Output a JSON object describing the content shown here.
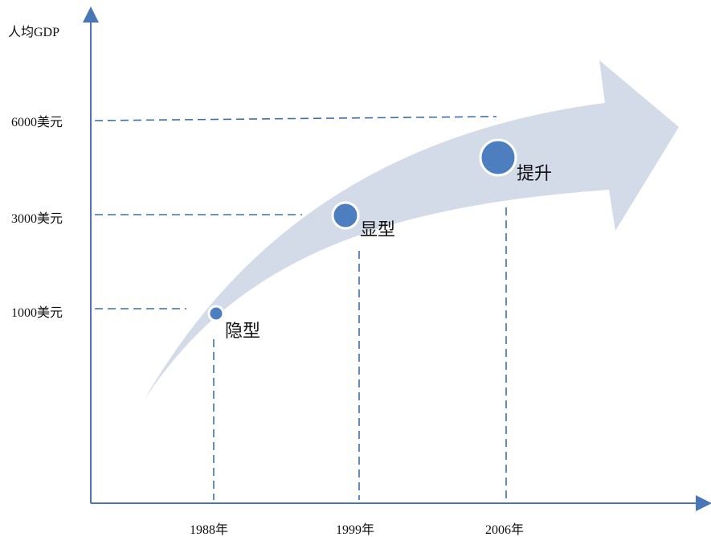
{
  "axes": {
    "y_title": "人均GDP",
    "y_ticks": [
      "1000美元",
      "3000美元",
      "6000美元"
    ],
    "x_ticks": [
      "1988年",
      "1999年",
      "2006年"
    ]
  },
  "stages": [
    {
      "label": "隐型",
      "x": "1988年",
      "y": "1000美元"
    },
    {
      "label": "显型",
      "x": "1999年",
      "y": "3000美元"
    },
    {
      "label": "提升",
      "x": "2006年",
      "y": "6000美元"
    }
  ],
  "colors": {
    "axis": "#4a76b8",
    "dashed": "#3d6fb6",
    "arrow_fill": "#d3dbe9",
    "marker_fill": "#4d7fc0",
    "marker_stroke": "#ffffff"
  }
}
